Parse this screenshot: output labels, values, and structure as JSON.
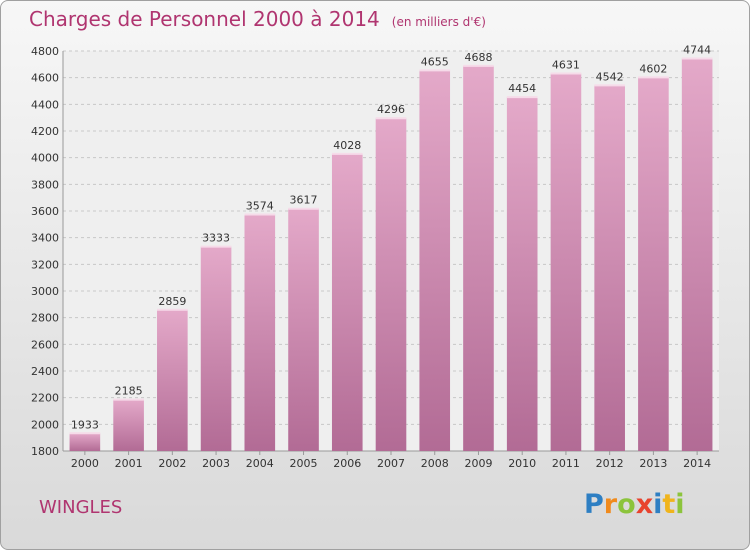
{
  "header": {
    "title": "Charges de Personnel 2000 à 2014",
    "unit": "(en milliers d'€)"
  },
  "footer": {
    "city": "WINGLES",
    "logo": [
      "P",
      "r",
      "o",
      "x",
      "i",
      "t",
      "i"
    ]
  },
  "colors": {
    "accent": "#b03570",
    "bar_top": "#e4a9c9",
    "bar_bottom": "#b26b95",
    "logo": [
      "#2e7fc3",
      "#f08a1c",
      "#8cc43c",
      "#e8432e",
      "#2e7fc3",
      "#f0b41c",
      "#8cc43c"
    ]
  },
  "chart_data": {
    "type": "bar",
    "categories": [
      "2000",
      "2001",
      "2002",
      "2003",
      "2004",
      "2005",
      "2006",
      "2007",
      "2008",
      "2009",
      "2010",
      "2011",
      "2012",
      "2013",
      "2014"
    ],
    "values": [
      1933,
      2185,
      2859,
      3333,
      3574,
      3617,
      4028,
      4296,
      4655,
      4688,
      4454,
      4631,
      4542,
      4602,
      4744
    ],
    "ylim": [
      1800,
      4800
    ],
    "yticks": [
      1800,
      2000,
      2200,
      2400,
      2600,
      2800,
      3000,
      3200,
      3400,
      3600,
      3800,
      4000,
      4200,
      4400,
      4600,
      4800
    ],
    "grid": true,
    "data_labels": true
  }
}
